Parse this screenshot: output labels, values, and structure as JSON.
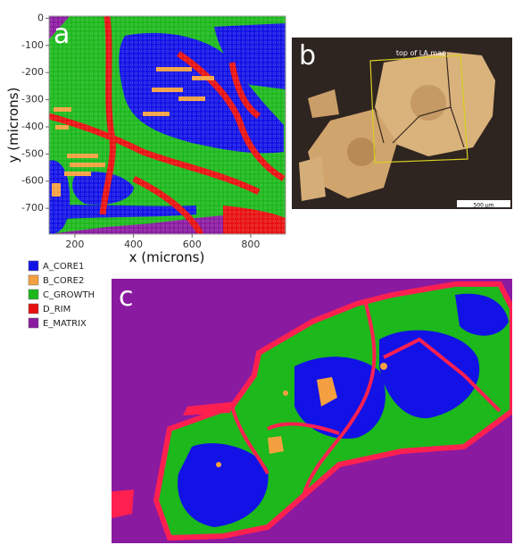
{
  "panel_a": {
    "label": "a",
    "x_label": "x (microns)",
    "y_label": "y (microns)",
    "xlim": [
      112,
      919
    ],
    "ylim": [
      -795,
      8
    ],
    "xticks": [
      200,
      400,
      600,
      800
    ],
    "yticks": [
      0,
      -100,
      -200,
      -300,
      -400,
      -500,
      -600,
      -700
    ]
  },
  "legend": [
    {
      "name": "A_CORE1",
      "color": "#1212e6"
    },
    {
      "name": "B_CORE2",
      "color": "#f5a040"
    },
    {
      "name": "C_GROWTH",
      "color": "#1cb81c"
    },
    {
      "name": "D_RIM",
      "color": "#e81010"
    },
    {
      "name": "E_MATRIX",
      "color": "#8a1aa0"
    }
  ],
  "panel_b": {
    "label": "b",
    "annotation": "top of LA map",
    "scale_bar": "500 µm"
  },
  "panel_c": {
    "label": "c"
  }
}
